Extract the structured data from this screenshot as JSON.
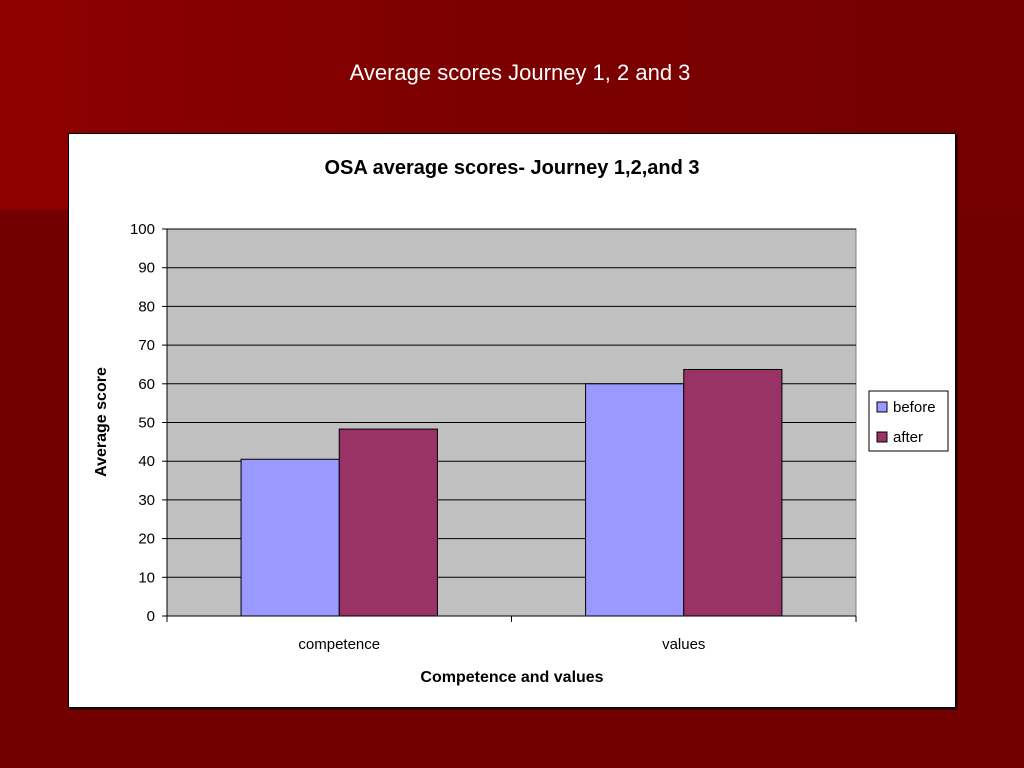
{
  "slide": {
    "title": "Average scores Journey 1, 2 and 3"
  },
  "chart_data": {
    "type": "bar",
    "title": "OSA average scores- Journey 1,2,and 3",
    "xlabel": "Competence and values",
    "ylabel": "Average score",
    "categories": [
      "competence",
      "values"
    ],
    "series": [
      {
        "name": "before",
        "values": [
          40.5,
          60
        ],
        "color": "#9999ff"
      },
      {
        "name": "after",
        "values": [
          48.3,
          63.7
        ],
        "color": "#993366"
      }
    ],
    "ylim": [
      0,
      100
    ],
    "yticks": [
      0,
      10,
      20,
      30,
      40,
      50,
      60,
      70,
      80,
      90,
      100
    ],
    "grid": true,
    "plot_background": "#c0c0c0",
    "legend_position": "right"
  }
}
